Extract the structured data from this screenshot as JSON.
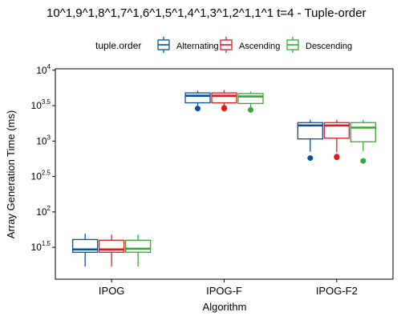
{
  "chart_data": {
    "type": "box",
    "title": "10^1,9^1,8^1,7^1,6^1,5^1,4^1,3^1,2^1,1^1 t=4 - Tuple-order",
    "xlabel": "Algorithm",
    "ylabel": "Array Generation Time (ms)",
    "y_scale": "log10",
    "ylim": [
      1.05,
      4.02
    ],
    "y_ticks": [
      {
        "exp": 1.5,
        "label_base": "10",
        "label_exp": "1.5"
      },
      {
        "exp": 2.0,
        "label_base": "10",
        "label_exp": "2"
      },
      {
        "exp": 2.5,
        "label_base": "10",
        "label_exp": "2.5"
      },
      {
        "exp": 3.0,
        "label_base": "10",
        "label_exp": "3"
      },
      {
        "exp": 3.5,
        "label_base": "10",
        "label_exp": "3.5"
      },
      {
        "exp": 4.0,
        "label_base": "10",
        "label_exp": "4"
      }
    ],
    "categories": [
      "IPOG",
      "IPOG-F",
      "IPOG-F2"
    ],
    "legend": {
      "title": "tuple.order",
      "position": "top"
    },
    "series": [
      {
        "name": "Alternating",
        "color": "#08519c",
        "boxes": [
          {
            "whisker_low": 1.23,
            "q1": 1.43,
            "median": 1.47,
            "q3": 1.61,
            "whisker_high": 1.69,
            "outliers": []
          },
          {
            "whisker_low": 3.42,
            "q1": 3.54,
            "median": 3.64,
            "q3": 3.68,
            "whisker_high": 3.71,
            "outliers": [
              3.46
            ]
          },
          {
            "whisker_low": 2.85,
            "q1": 3.03,
            "median": 3.22,
            "q3": 3.26,
            "whisker_high": 3.3,
            "outliers": [
              2.76
            ]
          }
        ]
      },
      {
        "name": "Ascending",
        "color": "#e31a1c",
        "boxes": [
          {
            "whisker_low": 1.23,
            "q1": 1.43,
            "median": 1.47,
            "q3": 1.6,
            "whisker_high": 1.68,
            "outliers": []
          },
          {
            "whisker_low": 3.45,
            "q1": 3.54,
            "median": 3.64,
            "q3": 3.68,
            "whisker_high": 3.72,
            "outliers": [
              3.46,
              3.47
            ]
          },
          {
            "whisker_low": 2.84,
            "q1": 3.04,
            "median": 3.22,
            "q3": 3.26,
            "whisker_high": 3.3,
            "outliers": [
              2.77,
              2.78
            ]
          }
        ]
      },
      {
        "name": "Descending",
        "color": "#33aa33",
        "boxes": [
          {
            "whisker_low": 1.23,
            "q1": 1.43,
            "median": 1.48,
            "q3": 1.6,
            "whisker_high": 1.68,
            "outliers": []
          },
          {
            "whisker_low": 3.42,
            "q1": 3.53,
            "median": 3.63,
            "q3": 3.67,
            "whisker_high": 3.7,
            "outliers": [
              3.44
            ]
          },
          {
            "whisker_low": 2.86,
            "q1": 2.99,
            "median": 3.19,
            "q3": 3.26,
            "whisker_high": 3.3,
            "outliers": [
              2.72
            ]
          }
        ]
      }
    ],
    "grid": false
  }
}
